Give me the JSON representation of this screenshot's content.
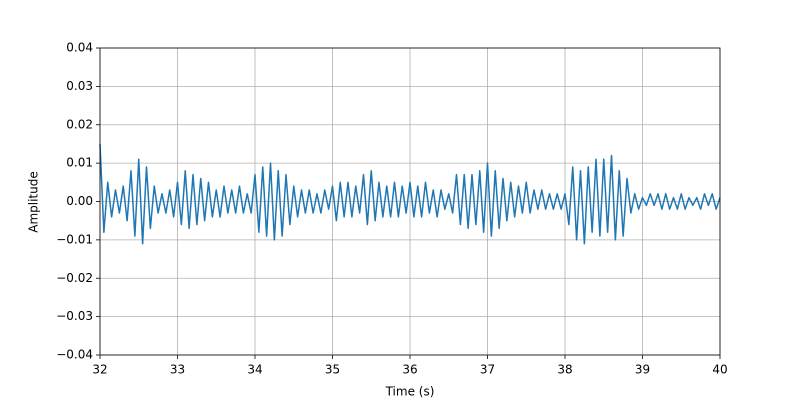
{
  "chart_data": {
    "type": "line",
    "x_label": "Time (s)",
    "y_label": "Amplitude",
    "color": "#1f77b4",
    "grid": true,
    "xlim": [
      32,
      40
    ],
    "xticks": [
      32,
      33,
      34,
      35,
      36,
      37,
      38,
      39,
      40
    ],
    "ylim": [
      -0.04,
      0.04
    ],
    "yticks": [
      {
        "value": -0.04,
        "label": "−0.04"
      },
      {
        "value": -0.03,
        "label": "−0.03"
      },
      {
        "value": -0.02,
        "label": "−0.02"
      },
      {
        "value": -0.01,
        "label": "−0.01"
      },
      {
        "value": 0,
        "label": "0.00"
      },
      0.01,
      0.02,
      0.03,
      0.04
    ],
    "x": [
      32.0,
      32.05,
      32.1,
      32.15,
      32.2,
      32.25,
      32.3,
      32.35,
      32.4,
      32.45,
      32.5,
      32.55,
      32.6,
      32.65,
      32.7,
      32.75,
      32.8,
      32.85,
      32.9,
      32.95,
      33.0,
      33.05,
      33.1,
      33.15,
      33.2,
      33.25,
      33.3,
      33.35,
      33.4,
      33.45,
      33.5,
      33.55,
      33.6,
      33.65,
      33.7,
      33.75,
      33.8,
      33.85,
      33.9,
      33.95,
      34.0,
      34.05,
      34.1,
      34.15,
      34.2,
      34.25,
      34.3,
      34.35,
      34.4,
      34.45,
      34.5,
      34.55,
      34.6,
      34.65,
      34.7,
      34.75,
      34.8,
      34.85,
      34.9,
      34.95,
      35.0,
      35.05,
      35.1,
      35.15,
      35.2,
      35.25,
      35.3,
      35.35,
      35.4,
      35.45,
      35.5,
      35.55,
      35.6,
      35.65,
      35.7,
      35.75,
      35.8,
      35.85,
      35.9,
      35.95,
      36.0,
      36.05,
      36.1,
      36.15,
      36.2,
      36.25,
      36.3,
      36.35,
      36.4,
      36.45,
      36.5,
      36.55,
      36.6,
      36.65,
      36.7,
      36.75,
      36.8,
      36.85,
      36.9,
      36.95,
      37.0,
      37.05,
      37.1,
      37.15,
      37.2,
      37.25,
      37.3,
      37.35,
      37.4,
      37.45,
      37.5,
      37.55,
      37.6,
      37.65,
      37.7,
      37.75,
      37.8,
      37.85,
      37.9,
      37.95,
      38.0,
      38.05,
      38.1,
      38.15,
      38.2,
      38.25,
      38.3,
      38.35,
      38.4,
      38.45,
      38.5,
      38.55,
      38.6,
      38.65,
      38.7,
      38.75,
      38.8,
      38.85,
      38.9,
      38.95,
      39.0,
      39.05,
      39.1,
      39.15,
      39.2,
      39.25,
      39.3,
      39.35,
      39.4,
      39.45,
      39.5,
      39.55,
      39.6,
      39.65,
      39.7,
      39.75,
      39.8,
      39.85,
      39.9,
      39.95,
      40.0
    ],
    "values": [
      0.015,
      -0.008,
      0.005,
      -0.004,
      0.003,
      -0.003,
      0.004,
      -0.005,
      0.008,
      -0.009,
      0.011,
      -0.011,
      0.009,
      -0.007,
      0.004,
      -0.003,
      0.002,
      -0.003,
      0.003,
      -0.004,
      0.005,
      -0.006,
      0.008,
      -0.007,
      0.007,
      -0.006,
      0.006,
      -0.005,
      0.005,
      -0.004,
      0.003,
      -0.004,
      0.004,
      -0.003,
      0.003,
      -0.003,
      0.004,
      -0.003,
      0.002,
      -0.003,
      0.007,
      -0.008,
      0.009,
      -0.009,
      0.01,
      -0.01,
      0.008,
      -0.009,
      0.007,
      -0.006,
      0.004,
      -0.004,
      0.003,
      -0.003,
      0.003,
      -0.003,
      0.002,
      -0.003,
      0.003,
      -0.002,
      0.004,
      -0.005,
      0.005,
      -0.004,
      0.005,
      -0.004,
      0.004,
      -0.003,
      0.007,
      -0.006,
      0.008,
      -0.005,
      0.005,
      -0.004,
      0.004,
      -0.004,
      0.005,
      -0.004,
      0.004,
      -0.003,
      0.005,
      -0.004,
      0.004,
      -0.004,
      0.005,
      -0.003,
      0.003,
      -0.004,
      0.003,
      -0.002,
      0.002,
      -0.003,
      0.007,
      -0.006,
      0.007,
      -0.007,
      0.007,
      -0.006,
      0.008,
      -0.008,
      0.01,
      -0.009,
      0.008,
      -0.007,
      0.006,
      -0.005,
      0.005,
      -0.004,
      0.004,
      -0.003,
      0.005,
      -0.003,
      0.003,
      -0.002,
      0.003,
      -0.002,
      0.002,
      -0.002,
      0.002,
      -0.002,
      0.002,
      -0.006,
      0.009,
      -0.01,
      0.008,
      -0.011,
      0.009,
      -0.008,
      0.011,
      -0.009,
      0.011,
      -0.008,
      0.012,
      -0.01,
      0.008,
      -0.009,
      0.006,
      -0.003,
      0.002,
      -0.002,
      0.001,
      -0.001,
      0.002,
      -0.001,
      0.002,
      -0.002,
      0.002,
      -0.002,
      0.001,
      -0.002,
      0.002,
      -0.002,
      0.001,
      -0.001,
      0.001,
      -0.002,
      0.002,
      -0.001,
      0.002,
      -0.002,
      0.001
    ]
  }
}
